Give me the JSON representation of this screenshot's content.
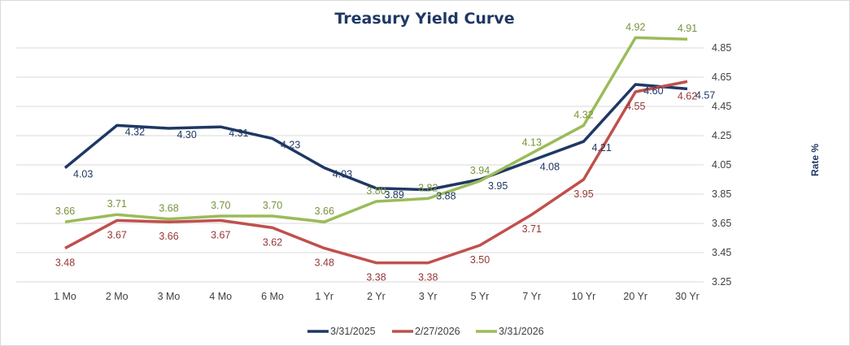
{
  "chart_data": {
    "type": "line",
    "title": "Treasury Yield Curve",
    "xlabel": "",
    "ylabel": "Rate %",
    "ylim": [
      3.25,
      5.05
    ],
    "yticks": [
      "3.25",
      "3.45",
      "3.65",
      "3.85",
      "4.05",
      "4.25",
      "4.45",
      "4.65",
      "4.85"
    ],
    "y_axis_side": "right",
    "grid": true,
    "legend_position": "bottom",
    "categories": [
      "1 Mo",
      "2 Mo",
      "3 Mo",
      "4 Mo",
      "6 Mo",
      "1 Yr",
      "2 Yr",
      "3 Yr",
      "5 Yr",
      "7 Yr",
      "10 Yr",
      "20 Yr",
      "30 Yr"
    ],
    "series": [
      {
        "name": "3/31/2025",
        "color": "#1f3864",
        "label_color": "#1f3864",
        "values": [
          4.03,
          4.32,
          4.3,
          4.31,
          4.23,
          4.03,
          3.89,
          3.88,
          3.95,
          4.08,
          4.21,
          4.6,
          4.57
        ]
      },
      {
        "name": "2/27/2026",
        "color": "#c0504d",
        "label_color": "#953735",
        "values": [
          3.48,
          3.67,
          3.66,
          3.67,
          3.62,
          3.48,
          3.38,
          3.38,
          3.5,
          3.71,
          3.95,
          4.55,
          4.62
        ]
      },
      {
        "name": "3/31/2026",
        "color": "#9bbb59",
        "label_color": "#77933c",
        "values": [
          3.66,
          3.71,
          3.68,
          3.7,
          3.7,
          3.66,
          3.8,
          3.82,
          3.94,
          4.13,
          4.32,
          4.92,
          4.91
        ]
      }
    ]
  }
}
